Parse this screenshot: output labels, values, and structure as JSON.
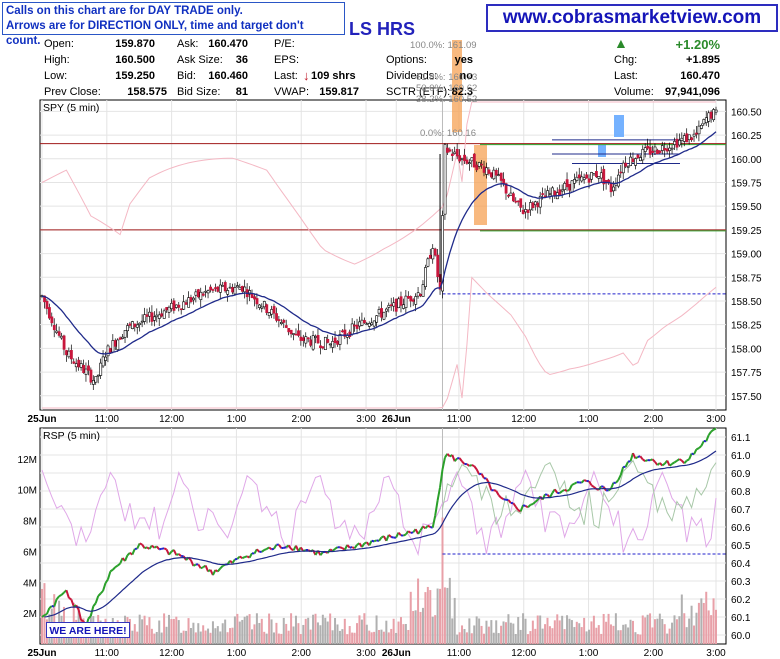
{
  "notice": {
    "line1": "Calls on this chart are for DAY TRADE only.",
    "line2": "Arrows are for DIRECTION ONLY, time and target don't count."
  },
  "website": "www.cobrasmarketview.com",
  "title_fragment": "LS HRS",
  "quote": {
    "open_label": "Open:",
    "open": "159.870",
    "high_label": "High:",
    "high": "160.500",
    "low_label": "Low:",
    "low": "159.250",
    "prev_label": "Prev Close:",
    "prev": "158.575",
    "ask_label": "Ask:",
    "ask": "160.470",
    "asksize_label": "Ask Size:",
    "asksize": "36",
    "bid_label": "Bid:",
    "bid": "160.460",
    "bidsize_label": "Bid Size:",
    "bidsize": "81",
    "pe_label": "P/E:",
    "eps_label": "EPS:",
    "last_label": "Last:",
    "last_trade": "109 shrs",
    "vwap_label": "VWAP:",
    "vwap": "159.817",
    "options_label": "Options:",
    "options": "yes",
    "dividends_label": "Dividends:",
    "dividends": "no",
    "sctr_label": "SCTR (ETF):",
    "sctr": "82.3",
    "change_pct": "+1.20%",
    "chg_label": "Chg:",
    "chg": "+1.895",
    "last2_label": "Last:",
    "last": "160.470",
    "volume_label": "Volume:",
    "volume": "97,941,096"
  },
  "fib_levels": [
    "100.0%: 161.09",
    "61.8%: 160.73",
    "50.0%: 160.62",
    "38.2%: 160.52",
    "0.0%: 160.16"
  ],
  "we_are_here": "WE ARE HERE!",
  "colors": {
    "up": "#2aa02a",
    "down": "#c8163c",
    "ma": "#1f2a8a",
    "blue": "#2222cc",
    "accent_red": "#a01a1a"
  },
  "chart_data": [
    {
      "type": "candlestick",
      "title": "SPY (5 min)",
      "ylim": [
        157.35,
        160.62
      ],
      "y_ticks": [
        "160.50",
        "160.25",
        "160.00",
        "159.75",
        "159.50",
        "159.25",
        "159.00",
        "158.75",
        "158.50",
        "158.25",
        "158.00",
        "157.75",
        "157.50"
      ],
      "x_ticks": [
        "25Jun",
        "11:00",
        "12:00",
        "1:00",
        "2:00",
        "3:00",
        "26Jun",
        "11:00",
        "12:00",
        "1:00",
        "2:00",
        "3:00"
      ],
      "horizontal_lines": {
        "red": [
          160.16,
          159.25
        ],
        "green": [
          160.16,
          159.25
        ],
        "dashed_blue": 158.575
      },
      "path": [
        [
          0,
          158.55
        ],
        [
          10,
          157.95
        ],
        [
          22,
          157.65
        ],
        [
          26,
          157.95
        ],
        [
          34,
          158.2
        ],
        [
          42,
          158.3
        ],
        [
          55,
          158.45
        ],
        [
          68,
          158.6
        ],
        [
          82,
          158.65
        ],
        [
          95,
          158.35
        ],
        [
          105,
          158.1
        ],
        [
          118,
          158.05
        ],
        [
          130,
          158.25
        ],
        [
          145,
          158.45
        ],
        [
          155,
          158.6
        ],
        [
          160,
          159.1
        ],
        [
          163,
          158.6
        ],
        [
          165,
          160.1
        ],
        [
          172,
          160.0
        ],
        [
          182,
          159.9
        ],
        [
          188,
          159.75
        ],
        [
          193,
          159.55
        ],
        [
          197,
          159.45
        ],
        [
          206,
          159.6
        ],
        [
          218,
          159.75
        ],
        [
          228,
          159.85
        ],
        [
          233,
          159.68
        ],
        [
          238,
          159.95
        ],
        [
          245,
          160.05
        ],
        [
          252,
          160.1
        ],
        [
          262,
          160.2
        ],
        [
          268,
          160.25
        ],
        [
          272,
          160.42
        ],
        [
          274,
          160.47
        ]
      ]
    },
    {
      "type": "line",
      "title": "RSP (5 min)",
      "ylim": [
        59.95,
        61.15
      ],
      "y_ticks": [
        "61.1",
        "61.0",
        "60.9",
        "60.8",
        "60.7",
        "60.6",
        "60.5",
        "60.4",
        "60.3",
        "60.2",
        "60.1",
        "60.0"
      ],
      "volume_ticks": [
        "12M",
        "10M",
        "8M",
        "6M",
        "4M",
        "2M"
      ],
      "volume_max": 14000000,
      "dashed_blue": 60.45,
      "path": [
        [
          0,
          60.1
        ],
        [
          10,
          60.25
        ],
        [
          18,
          60.05
        ],
        [
          28,
          60.35
        ],
        [
          40,
          60.5
        ],
        [
          55,
          60.45
        ],
        [
          70,
          60.35
        ],
        [
          85,
          60.45
        ],
        [
          100,
          60.5
        ],
        [
          115,
          60.45
        ],
        [
          130,
          60.5
        ],
        [
          145,
          60.55
        ],
        [
          160,
          60.6
        ],
        [
          165,
          61.0
        ],
        [
          175,
          60.95
        ],
        [
          182,
          60.85
        ],
        [
          188,
          60.75
        ],
        [
          196,
          60.7
        ],
        [
          208,
          60.78
        ],
        [
          222,
          60.85
        ],
        [
          232,
          60.8
        ],
        [
          242,
          61.0
        ],
        [
          255,
          60.95
        ],
        [
          265,
          60.98
        ],
        [
          275,
          61.13
        ]
      ]
    }
  ]
}
